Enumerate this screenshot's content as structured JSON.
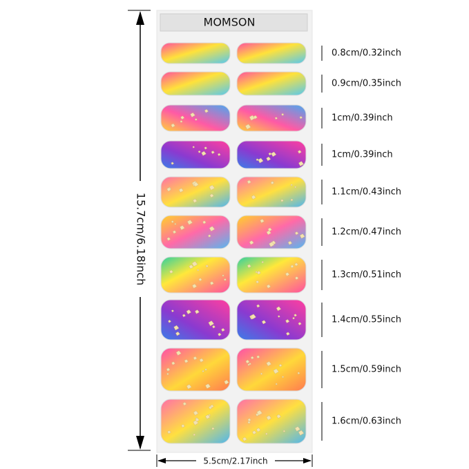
{
  "brand": "MOMSON",
  "height_label": "15.7cm/6.18inch",
  "width_label": "5.5cm/2.17inch",
  "rows": [
    {
      "size": "0.8cm/0.32inch"
    },
    {
      "size": "0.9cm/0.35inch"
    },
    {
      "size": "1cm/0.39inch"
    },
    {
      "size": "1cm/0.39inch"
    },
    {
      "size": "1.1cm/0.43inch"
    },
    {
      "size": "1.2cm/0.47inch"
    },
    {
      "size": "1.3cm/0.51inch"
    },
    {
      "size": "1.4cm/0.55inch"
    },
    {
      "size": "1.5cm/0.59inch"
    },
    {
      "size": "1.6cm/0.63inch"
    }
  ]
}
